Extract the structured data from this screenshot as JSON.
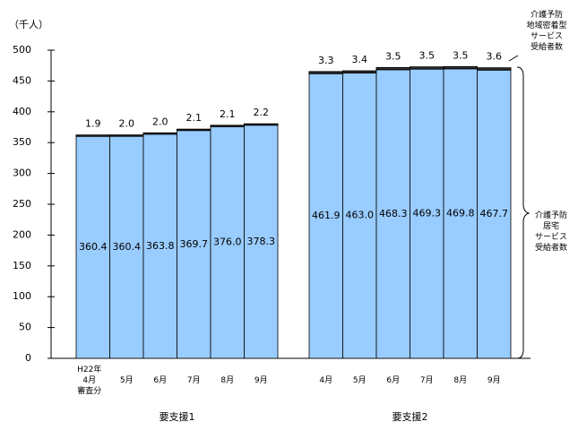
{
  "chart_data": {
    "type": "stacked-bar",
    "y_label": "（千人）",
    "categories": [
      "H22年\n4月\n審査分",
      "5月",
      "6月",
      "7月",
      "8月",
      "9月",
      "4月",
      "5月",
      "6月",
      "7月",
      "8月",
      "9月"
    ],
    "groups": [
      "要支援1",
      "要支援2"
    ],
    "series": [
      {
        "name": "介護予防\n居宅\nサービス\n受給者数",
        "color": "#99ccff",
        "values": [
          360.4,
          360.4,
          363.8,
          369.7,
          376.0,
          378.3,
          461.9,
          463.0,
          468.3,
          469.3,
          469.8,
          467.7
        ],
        "value_labels": [
          "360.4",
          "360.4",
          "363.8",
          "369.7",
          "376.0",
          "378.3",
          "461.9",
          "463.0",
          "468.3",
          "469.3",
          "469.8",
          "467.7"
        ]
      },
      {
        "name": "介護予防\n地域密着型\nサービス\n受給者数",
        "color": "#333333",
        "values": [
          1.9,
          2.0,
          2.0,
          2.1,
          2.1,
          2.2,
          3.3,
          3.4,
          3.5,
          3.5,
          3.5,
          3.6
        ],
        "value_labels": [
          "1.9",
          "2.0",
          "2.0",
          "2.1",
          "2.1",
          "2.2",
          "3.3",
          "3.4",
          "3.5",
          "3.5",
          "3.5",
          "3.6"
        ]
      }
    ],
    "ylim": [
      0,
      500
    ],
    "yticks": [
      0,
      50,
      100,
      150,
      200,
      250,
      300,
      350,
      400,
      450,
      500
    ],
    "grid": false
  }
}
